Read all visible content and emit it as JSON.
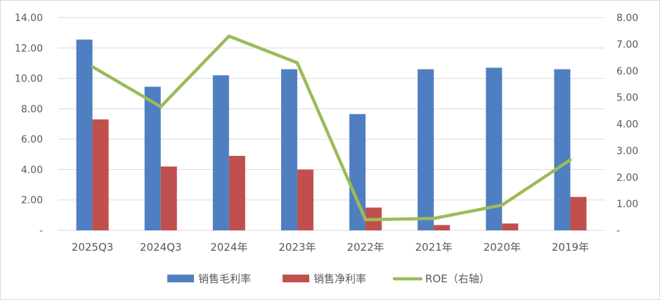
{
  "chart_data": {
    "type": "bar",
    "categories": [
      "2025Q3",
      "2024Q3",
      "2024年",
      "2023年",
      "2022年",
      "2021年",
      "2020年",
      "2019年"
    ],
    "series": [
      {
        "name": "销售毛利率",
        "type": "bar",
        "axis": "left",
        "color": "#4f7fc0",
        "values": [
          12.55,
          9.45,
          10.2,
          10.6,
          7.65,
          10.6,
          10.7,
          10.6
        ]
      },
      {
        "name": "销售净利率",
        "type": "bar",
        "axis": "left",
        "color": "#c0504d",
        "values": [
          7.3,
          4.2,
          4.9,
          4.0,
          1.5,
          0.35,
          0.45,
          2.2
        ]
      },
      {
        "name": "ROE（右轴）",
        "type": "line",
        "axis": "right",
        "color": "#9bbb59",
        "values": [
          6.15,
          4.65,
          7.3,
          6.3,
          0.4,
          0.45,
          0.95,
          2.65
        ]
      }
    ],
    "y_left": {
      "min": 0,
      "max": 14,
      "ticks": [
        "-",
        "2.00",
        "4.00",
        "6.00",
        "8.00",
        "10.00",
        "12.00",
        "14.00"
      ]
    },
    "y_right": {
      "min": 0,
      "max": 8,
      "ticks": [
        "-",
        "1.00",
        "2.00",
        "3.00",
        "4.00",
        "5.00",
        "6.00",
        "7.00",
        "8.00"
      ]
    },
    "grid": true,
    "legend_position": "bottom"
  }
}
